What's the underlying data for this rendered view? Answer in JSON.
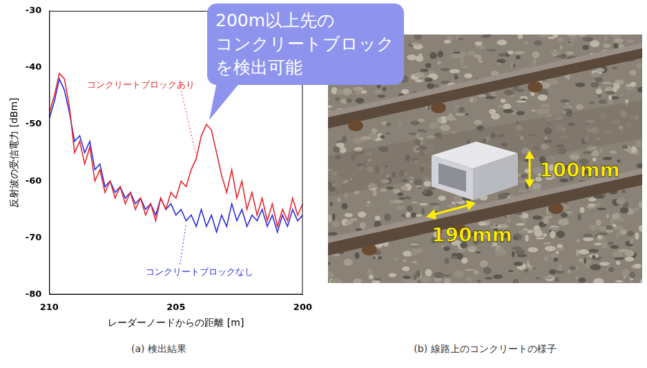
{
  "chart_data": {
    "type": "line",
    "x": [
      210,
      209.8,
      209.6,
      209.4,
      209.2,
      209.0,
      208.8,
      208.6,
      208.4,
      208.2,
      208.0,
      207.8,
      207.6,
      207.4,
      207.2,
      207.0,
      206.8,
      206.6,
      206.4,
      206.2,
      206.0,
      205.8,
      205.6,
      205.4,
      205.2,
      205.0,
      204.8,
      204.6,
      204.4,
      204.2,
      204.0,
      203.8,
      203.6,
      203.4,
      203.2,
      203.0,
      202.8,
      202.6,
      202.4,
      202.2,
      202.0,
      201.8,
      201.6,
      201.4,
      201.2,
      201.0,
      200.8,
      200.6,
      200.4,
      200.2,
      200.0
    ],
    "series": [
      {
        "name": "コンクリートブロックあり",
        "color": "#e8262b",
        "values": [
          -48,
          -45,
          -41,
          -42,
          -47,
          -55,
          -53,
          -57,
          -54,
          -60,
          -58,
          -62,
          -60,
          -63,
          -61,
          -64,
          -62,
          -65,
          -63,
          -66,
          -64,
          -67,
          -63,
          -65,
          -62,
          -63,
          -60,
          -61,
          -58,
          -56,
          -52,
          -50,
          -51,
          -55,
          -59,
          -62,
          -58,
          -63,
          -60,
          -65,
          -62,
          -66,
          -63,
          -67,
          -64,
          -68,
          -65,
          -67,
          -63,
          -66,
          -64
        ]
      },
      {
        "name": "コンクリートブロックなし",
        "color": "#2a2ae0",
        "values": [
          -49,
          -46,
          -42,
          -44,
          -48,
          -53,
          -52,
          -55,
          -53,
          -58,
          -57,
          -61,
          -60,
          -62,
          -61,
          -63,
          -62,
          -64,
          -63,
          -65,
          -64,
          -66,
          -63,
          -65,
          -64,
          -66,
          -65,
          -67,
          -66,
          -68,
          -65,
          -68,
          -66,
          -69,
          -66,
          -68,
          -64,
          -67,
          -65,
          -68,
          -66,
          -67,
          -65,
          -68,
          -66,
          -69,
          -66,
          -68,
          -65,
          -67,
          -66
        ]
      }
    ],
    "xlabel": "レーダーノードからの距離 [m]",
    "ylabel": "反射波の受信電力 [dBm]",
    "xlim": [
      210,
      200
    ],
    "xticks": [
      210,
      205,
      200
    ],
    "ylim": [
      -80,
      -30
    ],
    "yticks": [
      -80,
      -70,
      -60,
      -50,
      -40,
      -30
    ],
    "grid": false,
    "annotations": [
      "200m以上先の",
      "コンクリートブロック",
      "を検出可能"
    ],
    "caption": "(a) 検出結果"
  },
  "photo": {
    "caption": "(b) 線路上のコンクリートの様子",
    "dimension_labels": [
      "100mm",
      "190mm"
    ]
  }
}
